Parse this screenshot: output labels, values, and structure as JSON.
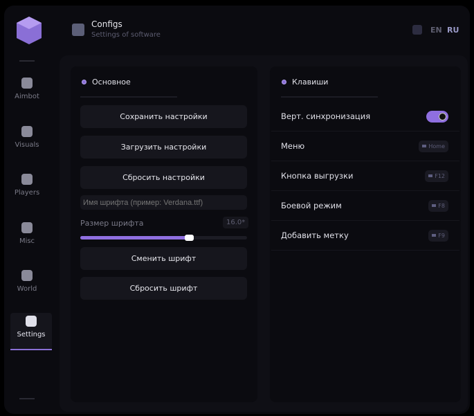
{
  "header": {
    "title": "Configs",
    "subtitle": "Settings of software",
    "lang_en": "EN",
    "lang_ru": "RU"
  },
  "sidebar": {
    "items": [
      {
        "label": "Aimbot",
        "icon": "skull-icon"
      },
      {
        "label": "Visuals",
        "icon": "vr-icon"
      },
      {
        "label": "Players",
        "icon": "users-icon"
      },
      {
        "label": "Misc",
        "icon": "chat-icon"
      },
      {
        "label": "World",
        "icon": "briefcase-icon"
      },
      {
        "label": "Settings",
        "icon": "list-icon",
        "active": true
      }
    ]
  },
  "main": {
    "title": "Основное",
    "save": "Сохранить настройки",
    "load": "Загрузить настройки",
    "reset": "Сбросить настройки",
    "font_placeholder": "Имя шрифта (пример: Verdana.ttf)",
    "font_size_label": "Размер шрифта",
    "font_size_value": "16.0*",
    "font_size_fraction": 0.65,
    "change_font": "Сменить шрифт",
    "reset_font": "Сбросить шрифт"
  },
  "keys": {
    "title": "Клавиши",
    "vsync_label": "Верт. синхронизация",
    "vsync_on": true,
    "rows": [
      {
        "label": "Меню",
        "key": "Home"
      },
      {
        "label": "Кнопка выгрузки",
        "key": "F12"
      },
      {
        "label": "Боевой режим",
        "key": "F8"
      },
      {
        "label": "Добавить метку",
        "key": "F9"
      }
    ]
  },
  "colors": {
    "accent": "#8f6fe0",
    "background": "#0b0b10"
  }
}
